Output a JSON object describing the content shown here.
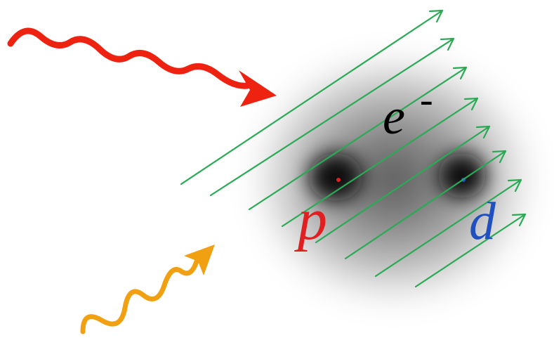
{
  "labels": {
    "electron": "e",
    "electron_charge": "-",
    "proton": "p",
    "deuteron": "d"
  }
}
